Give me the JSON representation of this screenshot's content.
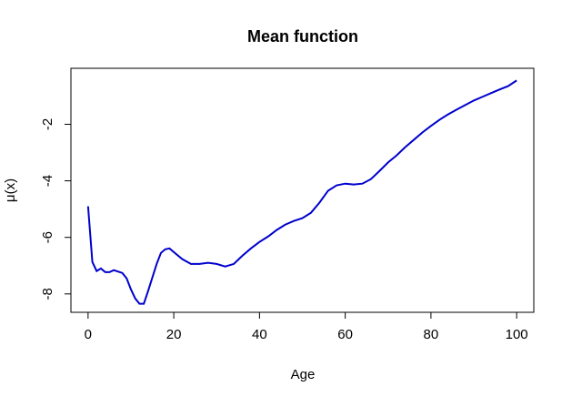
{
  "chart_data": {
    "type": "line",
    "title": "Mean function",
    "xlabel": "Age",
    "ylabel": "μ(x)",
    "x": [
      0,
      1,
      2,
      3,
      4,
      5,
      6,
      8,
      9,
      10,
      11,
      12,
      13,
      14,
      15,
      16,
      17,
      18,
      19,
      20,
      22,
      24,
      26,
      28,
      30,
      32,
      34,
      36,
      38,
      40,
      42,
      44,
      46,
      48,
      50,
      52,
      54,
      56,
      58,
      60,
      62,
      64,
      66,
      68,
      70,
      72,
      74,
      76,
      78,
      80,
      82,
      84,
      86,
      88,
      90,
      92,
      94,
      96,
      98,
      100
    ],
    "series": [
      {
        "color": "#0000cd",
        "values": [
          -4.9,
          -6.87,
          -7.19,
          -7.1,
          -7.23,
          -7.23,
          -7.16,
          -7.26,
          -7.45,
          -7.84,
          -8.16,
          -8.35,
          -8.35,
          -7.9,
          -7.42,
          -6.94,
          -6.55,
          -6.42,
          -6.39,
          -6.52,
          -6.77,
          -6.94,
          -6.94,
          -6.9,
          -6.94,
          -7.03,
          -6.94,
          -6.65,
          -6.39,
          -6.16,
          -5.97,
          -5.74,
          -5.55,
          -5.42,
          -5.32,
          -5.13,
          -4.77,
          -4.35,
          -4.16,
          -4.1,
          -4.13,
          -4.1,
          -3.94,
          -3.65,
          -3.35,
          -3.1,
          -2.81,
          -2.55,
          -2.29,
          -2.06,
          -1.84,
          -1.65,
          -1.48,
          -1.32,
          -1.16,
          -1.03,
          -0.9,
          -0.77,
          -0.65,
          -0.45
        ]
      }
    ],
    "xlim": [
      -4,
      104
    ],
    "ylim": [
      -8.65,
      -0.02
    ],
    "xticks": [
      0,
      20,
      40,
      60,
      80,
      100
    ],
    "yticks": [
      -8,
      -6,
      -4,
      -2
    ]
  }
}
